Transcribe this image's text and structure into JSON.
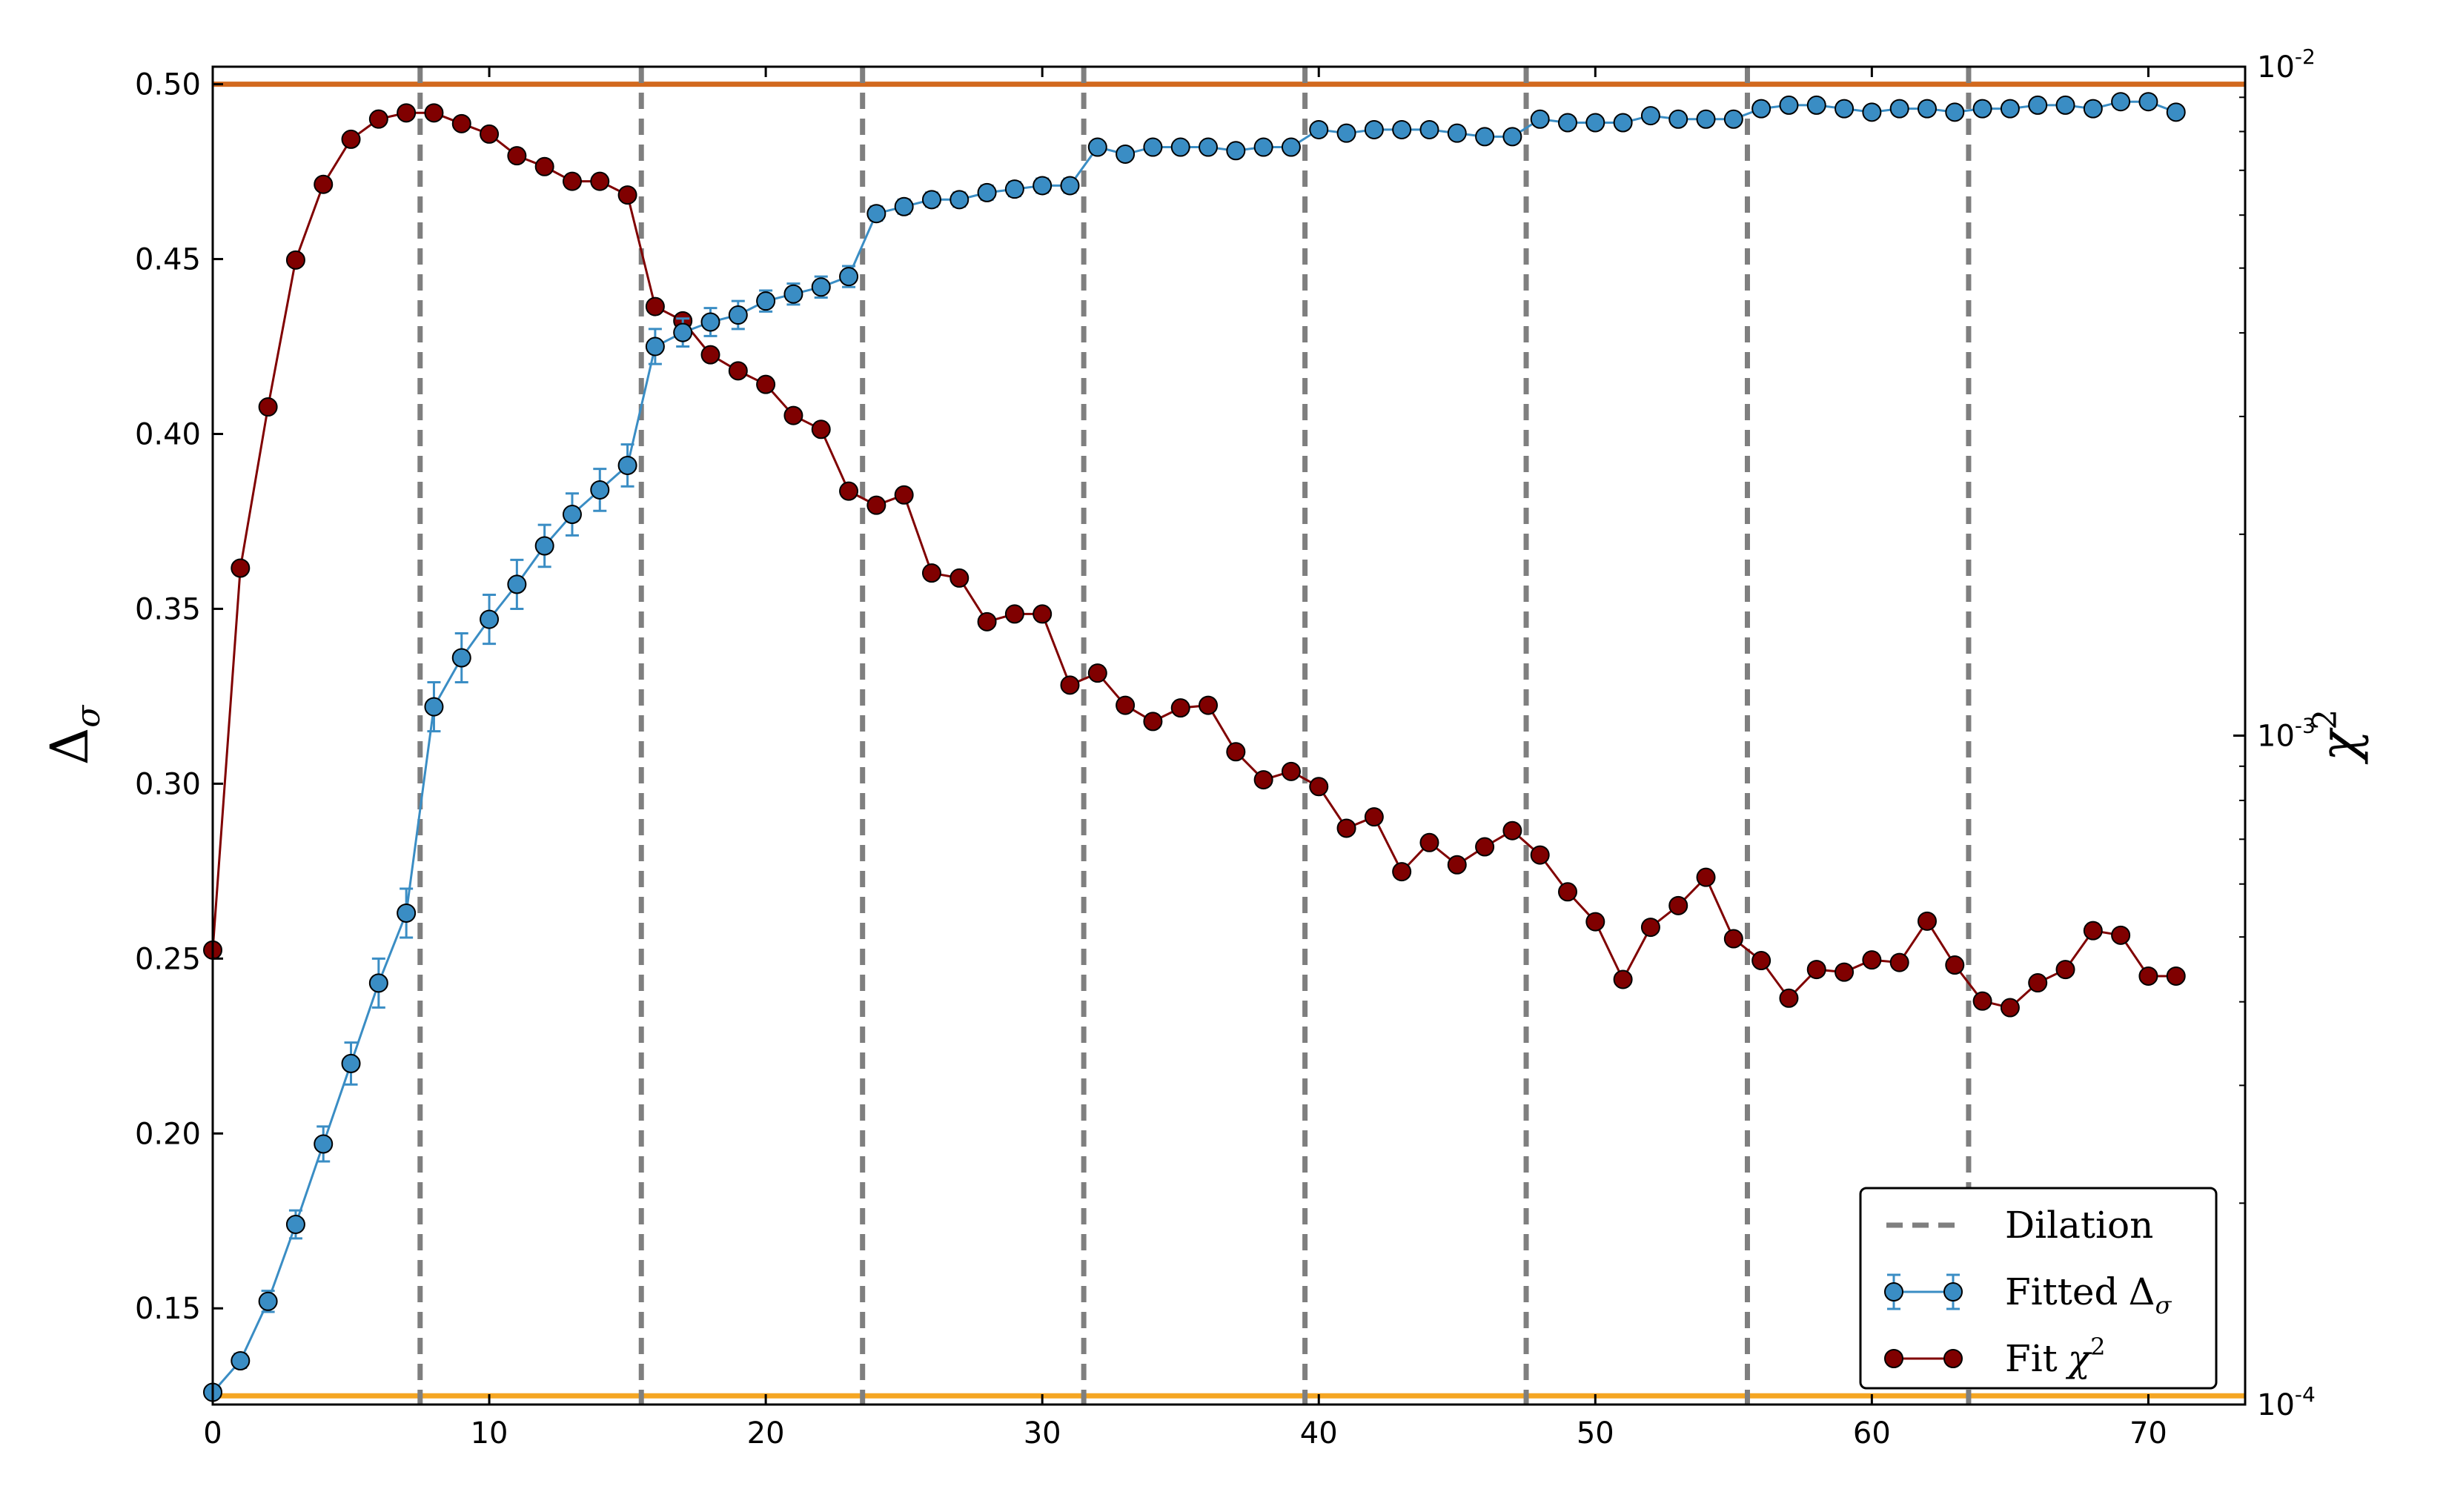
{
  "chart_data": {
    "type": "line",
    "ylabel": {
      "base": "Δ",
      "sub": "σ"
    },
    "y2label": {
      "base": "χ",
      "sup": "2"
    },
    "xlim": [
      0,
      73.5
    ],
    "ylim": [
      0.1225,
      0.505
    ],
    "y2lim": [
      0.0001,
      0.01
    ],
    "y2scale": "log",
    "grid": false,
    "legend_position": "bottom-right",
    "xticks": [
      0,
      10,
      20,
      30,
      40,
      50,
      60,
      70
    ],
    "xtick_labels": [
      "0",
      "10",
      "20",
      "30",
      "40",
      "50",
      "60",
      "70"
    ],
    "yticks": [
      0.15,
      0.2,
      0.25,
      0.3,
      0.35,
      0.4,
      0.45,
      0.5
    ],
    "ytick_labels": [
      "0.15",
      "0.20",
      "0.25",
      "0.30",
      "0.35",
      "0.40",
      "0.45",
      "0.50"
    ],
    "y2ticks": [
      0.0001,
      0.001,
      0.01
    ],
    "y2tick_labels": [
      {
        "base": "10",
        "exp": "-4"
      },
      {
        "base": "10",
        "exp": "-3"
      },
      {
        "base": "10",
        "exp": "-2"
      }
    ],
    "hlines": [
      {
        "y": 0.5,
        "color": "#d2691e"
      },
      {
        "y": 0.125,
        "color": "#f5a623"
      }
    ],
    "dilation_x": [
      7.5,
      15.5,
      23.5,
      31.5,
      39.5,
      47.5,
      55.5,
      63.5
    ],
    "series": [
      {
        "name": "Fitted",
        "name_sym": "Δ",
        "name_sub": "σ",
        "axis": "left",
        "color": "#3a8dc4",
        "x": [
          0,
          1,
          2,
          3,
          4,
          5,
          6,
          7,
          8,
          9,
          10,
          11,
          12,
          13,
          14,
          15,
          16,
          17,
          18,
          19,
          20,
          21,
          22,
          23,
          24,
          25,
          26,
          27,
          28,
          29,
          30,
          31,
          32,
          33,
          34,
          35,
          36,
          37,
          38,
          39,
          40,
          41,
          42,
          43,
          44,
          45,
          46,
          47,
          48,
          49,
          50,
          51,
          52,
          53,
          54,
          55,
          56,
          57,
          58,
          59,
          60,
          61,
          62,
          63,
          64,
          65,
          66,
          67,
          68,
          69,
          70,
          71
        ],
        "y": [
          0.126,
          0.135,
          0.152,
          0.174,
          0.197,
          0.22,
          0.243,
          0.263,
          0.322,
          0.336,
          0.347,
          0.357,
          0.368,
          0.377,
          0.384,
          0.391,
          0.425,
          0.429,
          0.432,
          0.434,
          0.438,
          0.44,
          0.442,
          0.445,
          0.463,
          0.465,
          0.467,
          0.467,
          0.469,
          0.47,
          0.471,
          0.471,
          0.482,
          0.48,
          0.482,
          0.482,
          0.482,
          0.481,
          0.482,
          0.482,
          0.487,
          0.486,
          0.487,
          0.487,
          0.487,
          0.486,
          0.485,
          0.485,
          0.49,
          0.489,
          0.489,
          0.489,
          0.491,
          0.49,
          0.49,
          0.49,
          0.493,
          0.494,
          0.494,
          0.493,
          0.492,
          0.493,
          0.493,
          0.492,
          0.493,
          0.493,
          0.494,
          0.494,
          0.493,
          0.495,
          0.495,
          0.492
        ],
        "yerr": [
          0.001,
          0.002,
          0.003,
          0.004,
          0.005,
          0.006,
          0.007,
          0.007,
          0.007,
          0.007,
          0.007,
          0.007,
          0.006,
          0.006,
          0.006,
          0.006,
          0.005,
          0.004,
          0.004,
          0.004,
          0.003,
          0.003,
          0.003,
          0.003,
          0.002,
          0.002,
          0.002,
          0.002,
          0.002,
          0.002,
          0.002,
          0.002,
          0.001,
          0.001,
          0.001,
          0.001,
          0.001,
          0.001,
          0.001,
          0.001,
          0.001,
          0.001,
          0.001,
          0.001,
          0.001,
          0.001,
          0.001,
          0.001,
          0.001,
          0.001,
          0.001,
          0.001,
          0.001,
          0.001,
          0.001,
          0.001,
          0.001,
          0.001,
          0.001,
          0.001,
          0.001,
          0.001,
          0.001,
          0.001,
          0.001,
          0.001,
          0.001,
          0.001,
          0.001,
          0.001,
          0.001,
          0.001
        ]
      },
      {
        "name": "Fit",
        "name_sym": "χ",
        "name_sup": "2",
        "axis": "right",
        "color": "#800000",
        "x": [
          0,
          1,
          2,
          3,
          4,
          5,
          6,
          7,
          8,
          9,
          10,
          11,
          12,
          13,
          14,
          15,
          16,
          17,
          18,
          19,
          20,
          21,
          22,
          23,
          24,
          25,
          26,
          27,
          28,
          29,
          30,
          31,
          32,
          33,
          34,
          35,
          36,
          37,
          38,
          39,
          40,
          41,
          42,
          43,
          44,
          45,
          46,
          47,
          48,
          49,
          50,
          51,
          52,
          53,
          54,
          55,
          56,
          57,
          58,
          59,
          60,
          61,
          62,
          63,
          64,
          65,
          66,
          67,
          68,
          69,
          70,
          71
        ],
        "y": [
          0.000478,
          0.00178,
          0.0031,
          0.00514,
          0.00667,
          0.00779,
          0.00835,
          0.00853,
          0.00853,
          0.00822,
          0.00793,
          0.00736,
          0.00709,
          0.00674,
          0.00674,
          0.00643,
          0.00438,
          0.00417,
          0.00371,
          0.00351,
          0.00335,
          0.00301,
          0.00287,
          0.00232,
          0.00221,
          0.00229,
          0.00175,
          0.00172,
          0.00148,
          0.00152,
          0.00152,
          0.00119,
          0.00124,
          0.00111,
          0.00105,
          0.0011,
          0.00111,
          0.000946,
          0.000859,
          0.000884,
          0.000839,
          0.000727,
          0.000756,
          0.000626,
          0.000692,
          0.000641,
          0.000682,
          0.000721,
          0.000663,
          0.000584,
          0.000527,
          0.000432,
          0.000517,
          0.000557,
          0.000614,
          0.000497,
          0.000461,
          0.000405,
          0.000447,
          0.000443,
          0.000462,
          0.000458,
          0.000528,
          0.000454,
          0.000401,
          0.000392,
          0.000427,
          0.000447,
          0.000511,
          0.000503,
          0.000437,
          0.000437
        ]
      }
    ],
    "legend": [
      {
        "key": "dilation",
        "label": "Dilation",
        "color": "#7f7f7f"
      },
      {
        "key": "fitted",
        "label": "Fitted",
        "sym": "Δ",
        "sub": "σ",
        "color": "#3a8dc4"
      },
      {
        "key": "chi",
        "label": "Fit",
        "sym": "χ",
        "sup": "2",
        "color": "#800000"
      }
    ]
  }
}
